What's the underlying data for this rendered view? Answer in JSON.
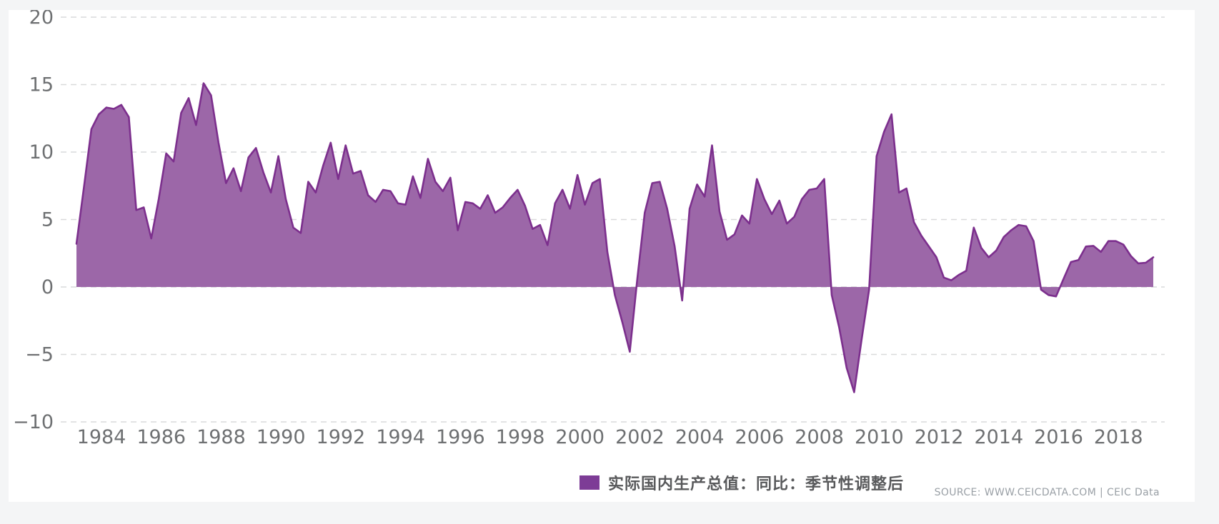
{
  "page": {
    "background_color": "#f4f5f6",
    "card_color": "#ffffff"
  },
  "chart_data": {
    "type": "area",
    "title": "",
    "xlabel": "",
    "ylabel": "",
    "frequency": "quarterly",
    "start_period": "1983-Q1",
    "end_period": "2019-Q1",
    "grid": "horizontal-dashed",
    "legend_position": "bottom",
    "ylim": [
      -10,
      20
    ],
    "y_ticks": [
      20,
      15,
      10,
      5,
      0,
      -5,
      -10
    ],
    "x_tick_labels": [
      "1984",
      "1986",
      "1988",
      "1990",
      "1992",
      "1994",
      "1996",
      "1998",
      "2000",
      "2002",
      "2004",
      "2006",
      "2008",
      "2010",
      "2012",
      "2014",
      "2016",
      "2018"
    ],
    "series": [
      {
        "name": "实际国内生产总值：同比：季节性调整后",
        "fill_color": "#9c67a8",
        "line_color": "#7c2f8d",
        "baseline": 0,
        "values": [
          3.2,
          7.4,
          11.7,
          12.8,
          13.3,
          13.2,
          13.5,
          12.6,
          5.7,
          5.9,
          3.6,
          6.5,
          9.9,
          9.3,
          12.9,
          14.0,
          12.0,
          15.1,
          14.2,
          10.7,
          7.7,
          8.8,
          7.1,
          9.6,
          10.3,
          8.5,
          7.0,
          9.7,
          6.5,
          4.4,
          4.0,
          7.8,
          7.0,
          9.0,
          10.7,
          8.0,
          10.5,
          8.4,
          8.6,
          6.8,
          6.3,
          7.2,
          7.1,
          6.2,
          6.1,
          8.2,
          6.6,
          9.5,
          7.8,
          7.1,
          8.1,
          4.2,
          6.3,
          6.2,
          5.8,
          6.8,
          5.5,
          5.9,
          6.6,
          7.2,
          6.0,
          4.3,
          4.6,
          3.1,
          6.2,
          7.2,
          5.8,
          8.3,
          6.1,
          7.7,
          8.0,
          2.6,
          -0.6,
          -2.6,
          -4.8,
          0.6,
          5.5,
          7.7,
          7.8,
          5.8,
          3.0,
          -1.0,
          5.8,
          7.6,
          6.7,
          10.5,
          5.6,
          3.5,
          3.9,
          5.3,
          4.7,
          8.0,
          6.5,
          5.4,
          6.4,
          4.7,
          5.2,
          6.5,
          7.2,
          7.3,
          8.0,
          -0.6,
          -3.0,
          -6.0,
          -7.8,
          -3.9,
          -0.2,
          9.7,
          11.5,
          12.8,
          7.0,
          7.3,
          4.8,
          3.8,
          3.0,
          2.2,
          0.7,
          0.5,
          0.9,
          1.2,
          4.4,
          2.9,
          2.2,
          2.7,
          3.7,
          4.2,
          4.6,
          4.5,
          3.4,
          -0.2,
          -0.6,
          -0.7,
          0.6,
          1.85,
          2.0,
          3.0,
          3.05,
          2.6,
          3.4,
          3.4,
          3.15,
          2.3,
          1.75,
          1.8,
          2.2
        ]
      }
    ],
    "colors": {
      "grid": "#d9dadb",
      "axis_text": "#6e7072"
    }
  },
  "legend": {
    "label": "实际国内生产总值：同比：季节性调整后",
    "marker_color": "#7d3c96"
  },
  "source": {
    "text": "SOURCE: WWW.CEICDATA.COM | CEIC Data"
  }
}
